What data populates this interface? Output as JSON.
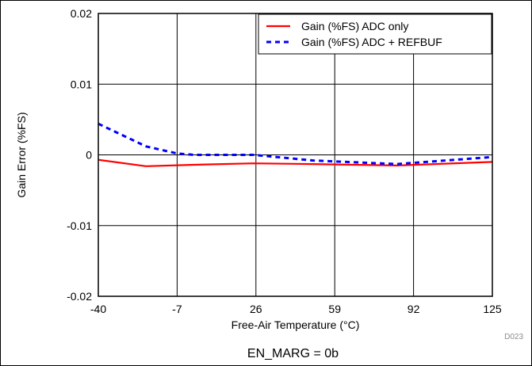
{
  "chart_data": {
    "type": "line",
    "xlabel": "Free-Air Temperature (°C)",
    "ylabel": "Gain Error (%FS)",
    "xlim": [
      -40,
      125
    ],
    "ylim": [
      -0.02,
      0.02
    ],
    "x_ticks": [
      -40,
      -7,
      26,
      59,
      92,
      125
    ],
    "x_tick_labels": [
      "-40",
      "-7",
      "26",
      "59",
      "92",
      "125"
    ],
    "y_ticks": [
      -0.02,
      -0.01,
      0,
      0.01,
      0.02
    ],
    "y_tick_labels": [
      "-0.02",
      "-0.01",
      "0",
      "0.01",
      "0.02"
    ],
    "grid": true,
    "legend_position": "top-right",
    "series": [
      {
        "name": "Gain (%FS) ADC only",
        "color": "#ff0000",
        "style": "solid",
        "x": [
          -40,
          -20,
          0,
          25,
          50,
          85,
          125
        ],
        "y": [
          -0.0007,
          -0.0016,
          -0.0014,
          -0.0012,
          -0.0013,
          -0.0015,
          -0.001
        ]
      },
      {
        "name": "Gain (%FS) ADC + REFBUF",
        "color": "#0000ff",
        "style": "dashed",
        "x": [
          -40,
          -20,
          -7,
          0,
          25,
          50,
          85,
          125
        ],
        "y": [
          0.0044,
          0.0012,
          0.0002,
          0.0,
          0.0,
          -0.0008,
          -0.0013,
          -0.0003
        ]
      }
    ]
  },
  "figure_id": "D023",
  "caption": "EN_MARG = 0b"
}
